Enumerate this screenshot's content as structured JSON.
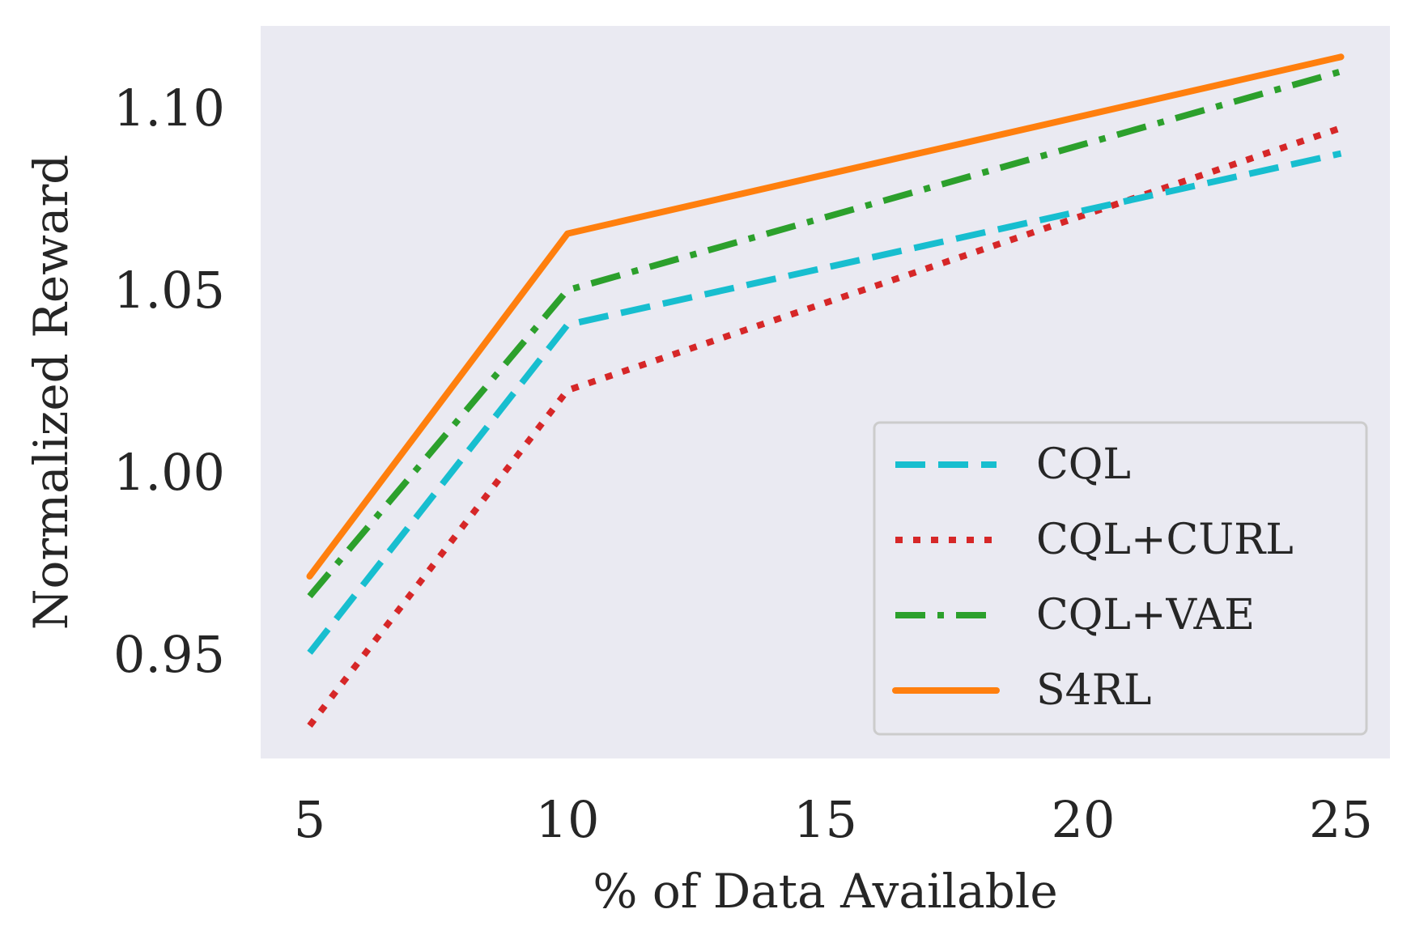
{
  "chart_data": {
    "type": "line",
    "title": "",
    "xlabel": "% of Data Available",
    "ylabel": "Normalized Reward",
    "x": [
      5,
      10,
      25
    ],
    "xticks": [
      5,
      10,
      15,
      20,
      25
    ],
    "xtick_labels": [
      "5",
      "10",
      "15",
      "20",
      "25"
    ],
    "yticks": [
      0.95,
      1.0,
      1.05,
      1.1
    ],
    "ytick_labels": [
      "0.95",
      "1.00",
      "1.05",
      "1.10"
    ],
    "xlim": [
      4.05,
      25.95
    ],
    "ylim": [
      0.9215,
      1.1225
    ],
    "grid": false,
    "legend_position": "lower-right",
    "background": "#eaeaf2",
    "series": [
      {
        "name": "CQL",
        "values": [
          0.9505,
          1.0405,
          1.0875
        ],
        "color": "#17becf",
        "style": "dashed"
      },
      {
        "name": "CQL+CURL",
        "values": [
          0.9305,
          1.0225,
          1.0945
        ],
        "color": "#d62728",
        "style": "dotted"
      },
      {
        "name": "CQL+VAE",
        "values": [
          0.966,
          1.05,
          1.11
        ],
        "color": "#2ca02c",
        "style": "dashdot"
      },
      {
        "name": "S4RL",
        "values": [
          0.9715,
          1.0655,
          1.114
        ],
        "color": "#ff7f0e",
        "style": "solid"
      }
    ]
  }
}
